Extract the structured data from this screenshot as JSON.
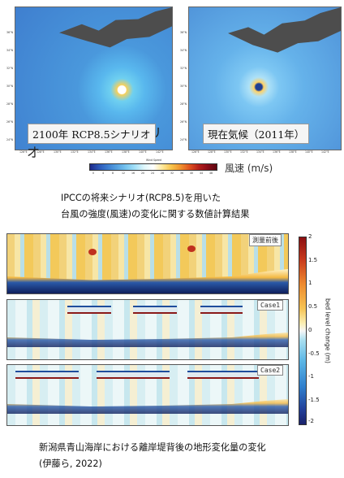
{
  "maps": {
    "left_label": "2100年 RCP8.5シナリオ",
    "right_label": "現在気候（2011年）",
    "lat_ticks": [
      "36°N",
      "34°N",
      "32°N",
      "30°N",
      "28°N",
      "26°N",
      "24°N"
    ],
    "lon_ticks": [
      "126°E",
      "128°E",
      "130°E",
      "132°E",
      "134°E",
      "136°E",
      "138°E",
      "140°E",
      "142°E"
    ],
    "colorbar": {
      "title": "Wind Speed",
      "ticks": [
        "0",
        "4",
        "8",
        "12",
        "16",
        "20",
        "24",
        "28",
        "32",
        "36",
        "40",
        "44",
        "48"
      ],
      "unit_label": "風速 (m/s)"
    }
  },
  "caption1": {
    "line1": "IPCCの将来シナリオ(RCP8.5)を用いた",
    "line2": "台風の強度(風速)の変化に関する数値計算結果"
  },
  "panels": {
    "p1": "測量前後",
    "p2": "Case1",
    "p3": "Case2"
  },
  "colorbar2": {
    "label": "bed level change (m)",
    "ticks": [
      "2",
      "1.5",
      "1",
      "0.5",
      "0",
      "-0.5",
      "-1",
      "-1.5",
      "-2"
    ]
  },
  "caption2": {
    "line1": "新潟県青山海岸における離岸堤背後の地形変化量の変化",
    "line2": "(伊藤ら, 2022)"
  },
  "colors": {
    "accent_warm": "#b6201a",
    "accent_cool": "#1f4d9c"
  }
}
